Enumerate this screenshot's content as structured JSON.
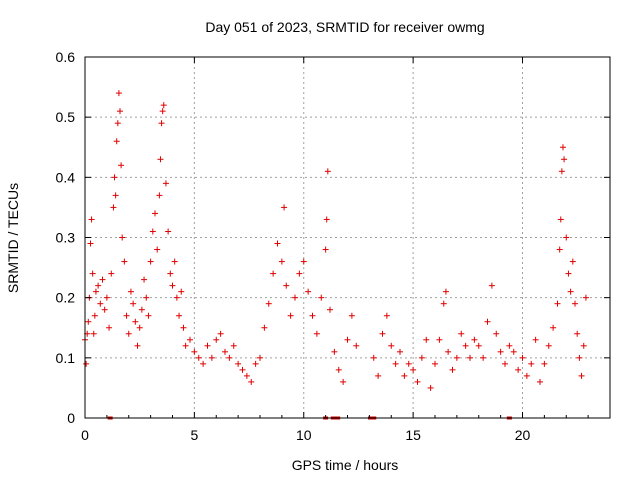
{
  "chart_data": {
    "type": "scatter",
    "title": "Day 051 of 2023, SRMTID for receiver owmg",
    "xlabel": "GPS time / hours",
    "ylabel": "SRMTID / TECUs",
    "xlim": [
      0,
      24
    ],
    "ylim": [
      0,
      0.6
    ],
    "xticks": [
      "0",
      "5",
      "10",
      "15",
      "20"
    ],
    "xtick_values": [
      0,
      5,
      10,
      15,
      20
    ],
    "yticks": [
      "0",
      "0.1",
      "0.2",
      "0.3",
      "0.4",
      "0.5",
      "0.6"
    ],
    "ytick_values": [
      0,
      0.1,
      0.2,
      0.3,
      0.4,
      0.5,
      0.6
    ],
    "grid": true,
    "marker": "+",
    "series_color": "#e00000",
    "series": [
      {
        "name": "SRMTID",
        "points": [
          [
            0.0,
            0.13
          ],
          [
            0.05,
            0.09
          ],
          [
            0.1,
            0.14
          ],
          [
            0.15,
            0.16
          ],
          [
            0.2,
            0.2
          ],
          [
            0.25,
            0.29
          ],
          [
            0.3,
            0.33
          ],
          [
            0.35,
            0.24
          ],
          [
            0.4,
            0.14
          ],
          [
            0.45,
            0.17
          ],
          [
            0.5,
            0.21
          ],
          [
            0.6,
            0.22
          ],
          [
            0.7,
            0.19
          ],
          [
            0.8,
            0.23
          ],
          [
            0.9,
            0.18
          ],
          [
            1.0,
            0.2
          ],
          [
            1.1,
            0.15
          ],
          [
            1.2,
            0.24
          ],
          [
            1.3,
            0.35
          ],
          [
            1.35,
            0.4
          ],
          [
            1.4,
            0.37
          ],
          [
            1.45,
            0.46
          ],
          [
            1.5,
            0.49
          ],
          [
            1.55,
            0.54
          ],
          [
            1.6,
            0.51
          ],
          [
            1.65,
            0.42
          ],
          [
            1.7,
            0.3
          ],
          [
            1.8,
            0.26
          ],
          [
            1.9,
            0.17
          ],
          [
            2.0,
            0.14
          ],
          [
            2.1,
            0.21
          ],
          [
            2.2,
            0.19
          ],
          [
            2.3,
            0.16
          ],
          [
            2.4,
            0.12
          ],
          [
            2.5,
            0.15
          ],
          [
            2.6,
            0.18
          ],
          [
            2.7,
            0.23
          ],
          [
            2.8,
            0.2
          ],
          [
            2.9,
            0.17
          ],
          [
            3.0,
            0.26
          ],
          [
            3.1,
            0.31
          ],
          [
            3.2,
            0.34
          ],
          [
            3.3,
            0.28
          ],
          [
            3.4,
            0.37
          ],
          [
            3.45,
            0.43
          ],
          [
            3.5,
            0.49
          ],
          [
            3.55,
            0.51
          ],
          [
            3.6,
            0.52
          ],
          [
            3.7,
            0.39
          ],
          [
            3.8,
            0.31
          ],
          [
            3.9,
            0.24
          ],
          [
            4.0,
            0.22
          ],
          [
            4.1,
            0.26
          ],
          [
            4.2,
            0.2
          ],
          [
            4.3,
            0.17
          ],
          [
            4.4,
            0.21
          ],
          [
            4.5,
            0.15
          ],
          [
            4.6,
            0.12
          ],
          [
            4.8,
            0.13
          ],
          [
            5.0,
            0.11
          ],
          [
            5.2,
            0.1
          ],
          [
            5.4,
            0.09
          ],
          [
            5.6,
            0.12
          ],
          [
            5.8,
            0.1
          ],
          [
            6.0,
            0.13
          ],
          [
            6.2,
            0.14
          ],
          [
            6.4,
            0.11
          ],
          [
            6.6,
            0.1
          ],
          [
            6.8,
            0.12
          ],
          [
            7.0,
            0.09
          ],
          [
            7.2,
            0.08
          ],
          [
            7.4,
            0.07
          ],
          [
            7.6,
            0.06
          ],
          [
            7.8,
            0.09
          ],
          [
            8.0,
            0.1
          ],
          [
            8.2,
            0.15
          ],
          [
            8.4,
            0.19
          ],
          [
            8.6,
            0.24
          ],
          [
            8.8,
            0.29
          ],
          [
            9.0,
            0.26
          ],
          [
            9.1,
            0.35
          ],
          [
            9.2,
            0.22
          ],
          [
            9.4,
            0.17
          ],
          [
            9.6,
            0.2
          ],
          [
            9.8,
            0.24
          ],
          [
            10.0,
            0.26
          ],
          [
            10.2,
            0.21
          ],
          [
            10.4,
            0.17
          ],
          [
            10.6,
            0.14
          ],
          [
            10.8,
            0.2
          ],
          [
            11.0,
            0.28
          ],
          [
            11.05,
            0.33
          ],
          [
            11.1,
            0.41
          ],
          [
            11.2,
            0.18
          ],
          [
            11.4,
            0.11
          ],
          [
            11.6,
            0.08
          ],
          [
            11.8,
            0.06
          ],
          [
            12.0,
            0.13
          ],
          [
            12.2,
            0.17
          ],
          [
            12.4,
            0.12
          ],
          [
            13.2,
            0.1
          ],
          [
            13.4,
            0.07
          ],
          [
            13.6,
            0.14
          ],
          [
            13.8,
            0.17
          ],
          [
            14.0,
            0.12
          ],
          [
            14.2,
            0.09
          ],
          [
            14.4,
            0.11
          ],
          [
            14.6,
            0.07
          ],
          [
            14.8,
            0.09
          ],
          [
            15.0,
            0.08
          ],
          [
            15.2,
            0.06
          ],
          [
            15.4,
            0.1
          ],
          [
            15.6,
            0.13
          ],
          [
            15.8,
            0.05
          ],
          [
            16.0,
            0.09
          ],
          [
            16.2,
            0.13
          ],
          [
            16.4,
            0.19
          ],
          [
            16.5,
            0.21
          ],
          [
            16.6,
            0.11
          ],
          [
            16.8,
            0.08
          ],
          [
            17.0,
            0.1
          ],
          [
            17.2,
            0.14
          ],
          [
            17.4,
            0.12
          ],
          [
            17.6,
            0.1
          ],
          [
            17.8,
            0.13
          ],
          [
            18.0,
            0.12
          ],
          [
            18.2,
            0.1
          ],
          [
            18.4,
            0.16
          ],
          [
            18.6,
            0.22
          ],
          [
            18.8,
            0.14
          ],
          [
            19.0,
            0.11
          ],
          [
            19.2,
            0.09
          ],
          [
            19.4,
            0.12
          ],
          [
            19.6,
            0.11
          ],
          [
            19.8,
            0.08
          ],
          [
            20.0,
            0.1
          ],
          [
            20.2,
            0.07
          ],
          [
            20.4,
            0.09
          ],
          [
            20.6,
            0.13
          ],
          [
            20.8,
            0.06
          ],
          [
            21.0,
            0.09
          ],
          [
            21.2,
            0.12
          ],
          [
            21.4,
            0.15
          ],
          [
            21.6,
            0.19
          ],
          [
            21.7,
            0.28
          ],
          [
            21.75,
            0.33
          ],
          [
            21.8,
            0.41
          ],
          [
            21.85,
            0.45
          ],
          [
            21.9,
            0.43
          ],
          [
            22.0,
            0.3
          ],
          [
            22.1,
            0.24
          ],
          [
            22.2,
            0.21
          ],
          [
            22.3,
            0.26
          ],
          [
            22.4,
            0.19
          ],
          [
            22.5,
            0.14
          ],
          [
            22.6,
            0.1
          ],
          [
            22.7,
            0.07
          ],
          [
            22.8,
            0.12
          ],
          [
            22.9,
            0.2
          ]
        ]
      }
    ],
    "gap_markers_x": [
      1.15,
      11.0,
      11.35,
      11.55,
      13.05,
      13.2,
      19.4
    ]
  }
}
